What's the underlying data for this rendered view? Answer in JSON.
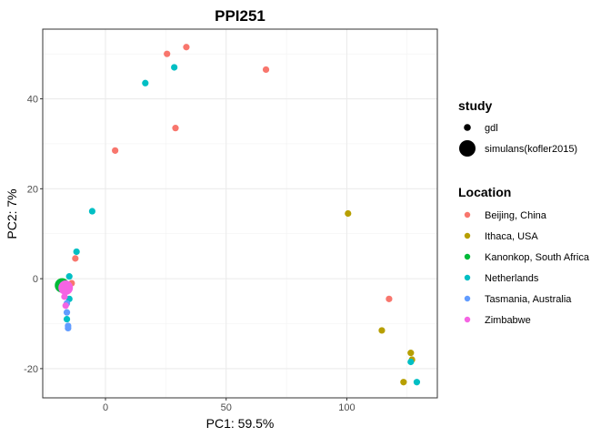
{
  "chart_data": {
    "type": "scatter",
    "title": "PPI251",
    "xlabel": "PC1: 59.5%",
    "ylabel": "PC2: 7%",
    "xlim": [
      -26,
      137.5
    ],
    "ylim": [
      -26.5,
      55.5
    ],
    "xticks": [
      0,
      50,
      100
    ],
    "yticks": [
      -20,
      0,
      20,
      40
    ],
    "xtick_labels": [
      "0",
      "50",
      "100"
    ],
    "ytick_labels": [
      "-20",
      "0",
      "20",
      "40"
    ],
    "grid": true,
    "legend_position": "right",
    "legends": {
      "study": {
        "title": "study",
        "entries": [
          {
            "label": "gdl",
            "size": "small"
          },
          {
            "label": "simulans(kofler2015)",
            "size": "large"
          }
        ]
      },
      "location": {
        "title": "Location",
        "entries": [
          {
            "label": "Beijing, China",
            "color": "#F8766D"
          },
          {
            "label": "Ithaca, USA",
            "color": "#B79F00"
          },
          {
            "label": "Kanonkop, South Africa",
            "color": "#00BA38"
          },
          {
            "label": "Netherlands",
            "color": "#00BFC4"
          },
          {
            "label": "Tasmania, Australia",
            "color": "#619CFF"
          },
          {
            "label": "Zimbabwe",
            "color": "#F564E3"
          }
        ]
      }
    },
    "series": [
      {
        "location": "Beijing, China",
        "study": "gdl",
        "color": "#F8766D",
        "points": [
          [
            33.5,
            51.5
          ],
          [
            25.5,
            50
          ],
          [
            66.5,
            46.5
          ],
          [
            29,
            33.5
          ],
          [
            4,
            28.5
          ],
          [
            -12.5,
            4.5
          ],
          [
            -14,
            -1
          ],
          [
            117.5,
            -4.5
          ]
        ]
      },
      {
        "location": "Ithaca, USA",
        "study": "gdl",
        "color": "#B79F00",
        "points": [
          [
            100.5,
            14.5
          ],
          [
            114.5,
            -11.5
          ],
          [
            126.5,
            -16.5
          ],
          [
            127,
            -18
          ],
          [
            123.5,
            -23
          ]
        ]
      },
      {
        "location": "Kanonkop, South Africa",
        "study": "gdl",
        "color": "#00BA38",
        "points": [
          [
            -16,
            -2
          ]
        ]
      },
      {
        "location": "Netherlands",
        "study": "gdl",
        "color": "#00BFC4",
        "points": [
          [
            28.5,
            47
          ],
          [
            16.5,
            43.5
          ],
          [
            -5.5,
            15
          ],
          [
            -12,
            6
          ],
          [
            -15,
            0.5
          ],
          [
            -15,
            -4.5
          ],
          [
            -16,
            -9
          ],
          [
            126.5,
            -18.5
          ],
          [
            129,
            -23
          ]
        ]
      },
      {
        "location": "Tasmania, Australia",
        "study": "gdl",
        "color": "#619CFF",
        "points": [
          [
            -16,
            -5.5
          ],
          [
            -16,
            -7.5
          ],
          [
            -15.5,
            -10.5
          ],
          [
            -15.5,
            -11
          ]
        ]
      },
      {
        "location": "Zimbabwe",
        "study": "gdl",
        "color": "#F564E3",
        "points": [
          [
            -17,
            -2.5
          ],
          [
            -17,
            -4
          ],
          [
            -16.5,
            -6
          ]
        ]
      },
      {
        "location": "Kanonkop, South Africa",
        "study": "simulans(kofler2015)",
        "color": "#00BA38",
        "points": [
          [
            -18,
            -1.5
          ]
        ]
      },
      {
        "location": "Zimbabwe",
        "study": "simulans(kofler2015)",
        "color": "#F564E3",
        "points": [
          [
            -16.5,
            -2
          ]
        ]
      }
    ]
  }
}
